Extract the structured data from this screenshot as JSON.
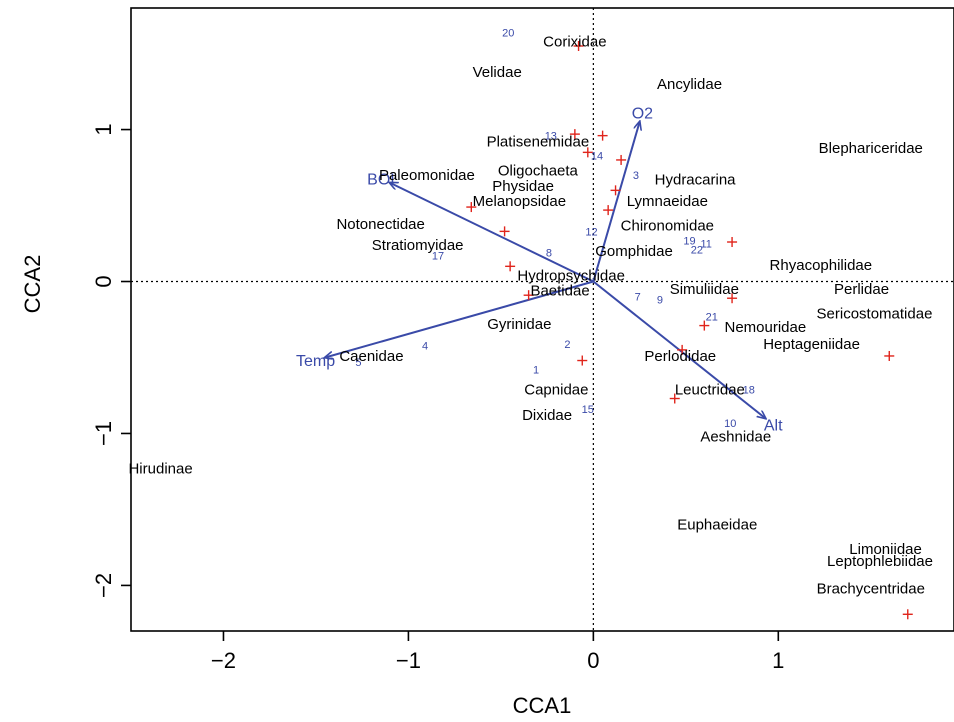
{
  "chart_data": {
    "type": "scatter",
    "title": "",
    "xlabel": "CCA1",
    "ylabel": "CCA2",
    "xlim": [
      -2.5,
      1.95
    ],
    "ylim": [
      -2.3,
      1.8
    ],
    "xticks": [
      -2,
      -1,
      0,
      1
    ],
    "yticks": [
      -2,
      -1,
      0,
      1
    ],
    "xtick_labels": [
      "−2",
      "−1",
      "0",
      "1"
    ],
    "ytick_labels": [
      "−2",
      "−1",
      "0",
      "1"
    ],
    "reference_lines": {
      "x": 0,
      "y": 0,
      "style": "dotted"
    },
    "colors": {
      "species_text": "#000000",
      "site_points": "#e0241b",
      "site_labels": "#3a4aa8",
      "arrows": "#3a4aa8"
    },
    "species": [
      {
        "name": "Corixidae",
        "x": -0.1,
        "y": 1.58
      },
      {
        "name": "Velidae",
        "x": -0.52,
        "y": 1.38
      },
      {
        "name": "Ancylidae",
        "x": 0.52,
        "y": 1.3
      },
      {
        "name": "Blephariceridae",
        "x": 1.5,
        "y": 0.88
      },
      {
        "name": "Platisenemidae",
        "x": -0.3,
        "y": 0.92
      },
      {
        "name": "Oligochaeta",
        "x": -0.3,
        "y": 0.73
      },
      {
        "name": "Paleomonidae",
        "x": -0.9,
        "y": 0.7
      },
      {
        "name": "Physidae",
        "x": -0.38,
        "y": 0.63
      },
      {
        "name": "Hydracarina",
        "x": 0.55,
        "y": 0.67
      },
      {
        "name": "Melanopsidae",
        "x": -0.4,
        "y": 0.53
      },
      {
        "name": "Lymnaeidae",
        "x": 0.4,
        "y": 0.53
      },
      {
        "name": "Notonectidae",
        "x": -1.15,
        "y": 0.38
      },
      {
        "name": "Chironomidae",
        "x": 0.4,
        "y": 0.37
      },
      {
        "name": "Stratiomyidae",
        "x": -0.95,
        "y": 0.24
      },
      {
        "name": "Gomphidae",
        "x": 0.22,
        "y": 0.2
      },
      {
        "name": "Rhyacophilidae",
        "x": 1.23,
        "y": 0.11
      },
      {
        "name": "Hydropsychidae",
        "x": -0.12,
        "y": 0.04
      },
      {
        "name": "Baetidae",
        "x": -0.18,
        "y": -0.06
      },
      {
        "name": "Simuliidae",
        "x": 0.6,
        "y": -0.05
      },
      {
        "name": "Perlidae",
        "x": 1.45,
        "y": -0.05
      },
      {
        "name": "Sericostomatidae",
        "x": 1.52,
        "y": -0.21
      },
      {
        "name": "Gyrinidae",
        "x": -0.4,
        "y": -0.28
      },
      {
        "name": "Nemouridae",
        "x": 0.93,
        "y": -0.3
      },
      {
        "name": "Heptageniidae",
        "x": 1.18,
        "y": -0.41
      },
      {
        "name": "Caenidae",
        "x": -1.2,
        "y": -0.49
      },
      {
        "name": "Perlodidae",
        "x": 0.47,
        "y": -0.49
      },
      {
        "name": "Capnidae",
        "x": -0.2,
        "y": -0.71
      },
      {
        "name": "Leuctridae",
        "x": 0.63,
        "y": -0.71
      },
      {
        "name": "Dixidae",
        "x": -0.25,
        "y": -0.88
      },
      {
        "name": "Aeshnidae",
        "x": 0.77,
        "y": -1.02
      },
      {
        "name": "Hirudinae",
        "x": -2.34,
        "y": -1.23
      },
      {
        "name": "Euphaeidae",
        "x": 0.67,
        "y": -1.6
      },
      {
        "name": "Limoniidae",
        "x": 1.58,
        "y": -1.76
      },
      {
        "name": "Leptophlebiidae",
        "x": 1.55,
        "y": -1.84
      },
      {
        "name": "Brachycentridae",
        "x": 1.5,
        "y": -2.02
      }
    ],
    "site_labels": [
      {
        "label": "20",
        "x": -0.46,
        "y": 1.64
      },
      {
        "label": "13",
        "x": -0.23,
        "y": 0.96
      },
      {
        "label": "14",
        "x": 0.02,
        "y": 0.83
      },
      {
        "label": "3",
        "x": 0.23,
        "y": 0.7
      },
      {
        "label": "12",
        "x": -0.01,
        "y": 0.33
      },
      {
        "label": "22",
        "x": 0.56,
        "y": 0.21
      },
      {
        "label": "19",
        "x": 0.52,
        "y": 0.27
      },
      {
        "label": "11",
        "x": 0.61,
        "y": 0.25
      },
      {
        "label": "8",
        "x": -0.24,
        "y": 0.19
      },
      {
        "label": "17",
        "x": -0.84,
        "y": 0.17
      },
      {
        "label": "7",
        "x": 0.24,
        "y": -0.1
      },
      {
        "label": "9",
        "x": 0.36,
        "y": -0.12
      },
      {
        "label": "21",
        "x": 0.64,
        "y": -0.23
      },
      {
        "label": "2",
        "x": -0.14,
        "y": -0.41
      },
      {
        "label": "4",
        "x": -0.91,
        "y": -0.42
      },
      {
        "label": "5",
        "x": -1.27,
        "y": -0.53
      },
      {
        "label": "1",
        "x": -0.31,
        "y": -0.58
      },
      {
        "label": "18",
        "x": 0.84,
        "y": -0.71
      },
      {
        "label": "10",
        "x": 0.74,
        "y": -0.93
      },
      {
        "label": "15",
        "x": -0.03,
        "y": -0.84
      }
    ],
    "site_points": [
      {
        "x": -0.08,
        "y": 1.55
      },
      {
        "x": -0.1,
        "y": 0.97
      },
      {
        "x": 0.05,
        "y": 0.96
      },
      {
        "x": -0.03,
        "y": 0.85
      },
      {
        "x": 0.15,
        "y": 0.8
      },
      {
        "x": 0.12,
        "y": 0.6
      },
      {
        "x": -0.66,
        "y": 0.49
      },
      {
        "x": 0.08,
        "y": 0.47
      },
      {
        "x": -0.48,
        "y": 0.33
      },
      {
        "x": 0.75,
        "y": 0.26
      },
      {
        "x": -0.45,
        "y": 0.1
      },
      {
        "x": -0.35,
        "y": -0.09
      },
      {
        "x": 0.75,
        "y": -0.11
      },
      {
        "x": 0.6,
        "y": -0.29
      },
      {
        "x": 0.48,
        "y": -0.45
      },
      {
        "x": 1.6,
        "y": -0.49
      },
      {
        "x": -0.06,
        "y": -0.52
      },
      {
        "x": 0.44,
        "y": -0.77
      },
      {
        "x": 1.7,
        "y": -2.19
      }
    ],
    "arrows": [
      {
        "label": "O2",
        "x": 0.25,
        "y": 1.05
      },
      {
        "label": "BOI",
        "x": -1.1,
        "y": 0.65
      },
      {
        "label": "Temp",
        "x": -1.45,
        "y": -0.5
      },
      {
        "label": "Alt",
        "x": 0.93,
        "y": -0.9
      }
    ]
  }
}
